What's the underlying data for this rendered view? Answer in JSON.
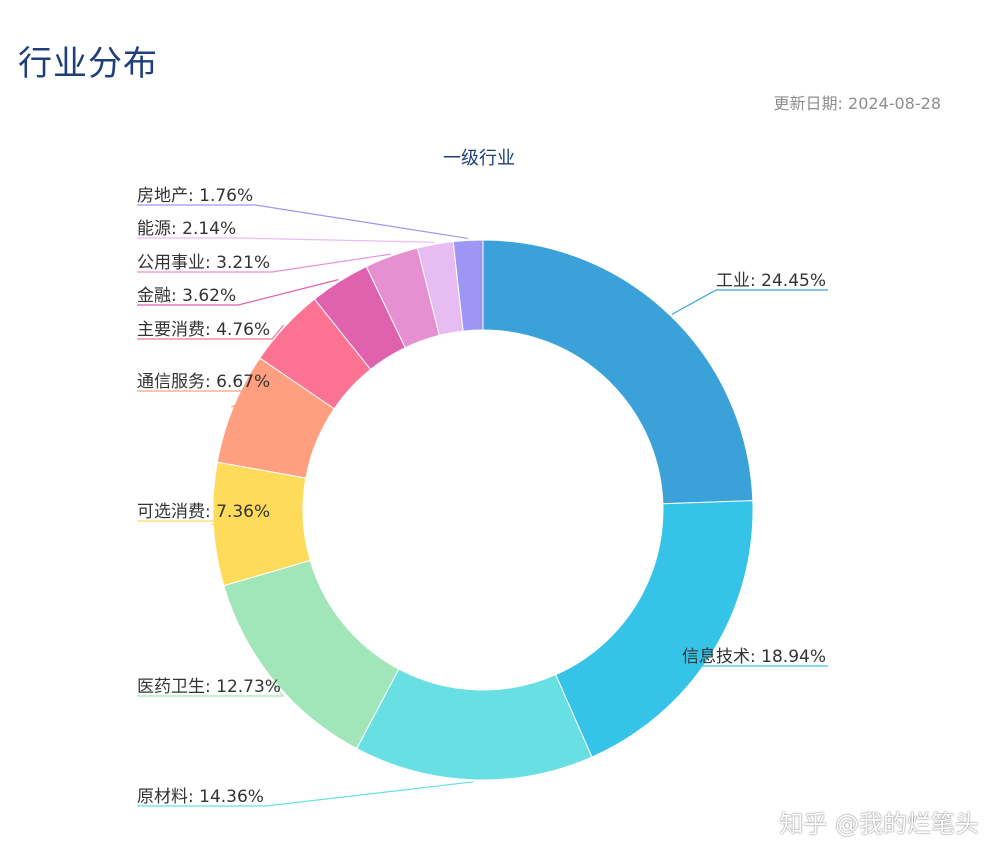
{
  "page": {
    "title": "行业分布",
    "update_date": "更新日期: 2024-08-28",
    "watermark": "知乎 @我的烂笔头"
  },
  "chart_data": {
    "type": "pie",
    "variant": "donut",
    "title": "一级行业",
    "unit": "%",
    "slices": [
      {
        "label": "工业",
        "value": 24.45,
        "color": "#3ba2d9"
      },
      {
        "label": "信息技术",
        "value": 18.94,
        "color": "#35c4e8"
      },
      {
        "label": "原材料",
        "value": 14.36,
        "color": "#67dfe3"
      },
      {
        "label": "医药卫生",
        "value": 12.73,
        "color": "#a1e6b8"
      },
      {
        "label": "可选消费",
        "value": 7.36,
        "color": "#ffdb5c"
      },
      {
        "label": "通信服务",
        "value": 6.67,
        "color": "#ff9f7f"
      },
      {
        "label": "主要消费",
        "value": 4.76,
        "color": "#fb7293"
      },
      {
        "label": "金融",
        "value": 3.62,
        "color": "#e062ae"
      },
      {
        "label": "公用事业",
        "value": 3.21,
        "color": "#e690d1"
      },
      {
        "label": "能源",
        "value": 2.14,
        "color": "#e7bcf3"
      },
      {
        "label": "房地产",
        "value": 1.76,
        "color": "#9d96f5"
      }
    ]
  }
}
